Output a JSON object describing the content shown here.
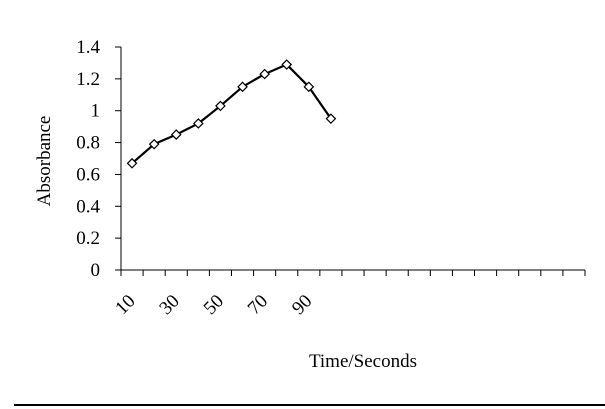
{
  "chart_data": {
    "type": "line",
    "title": "",
    "xlabel": "Time/Seconds",
    "ylabel": "Absorbance",
    "x": [
      10,
      20,
      30,
      40,
      50,
      60,
      70,
      80,
      90,
      100
    ],
    "series": [
      {
        "values": [
          0.67,
          0.79,
          0.85,
          0.92,
          1.03,
          1.15,
          1.23,
          1.29,
          1.15,
          0.95
        ],
        "marker": "diamond",
        "color": "#000000"
      }
    ],
    "y_ticks": [
      "0",
      "0.2",
      "0.4",
      "0.6",
      "0.8",
      "1",
      "1.2",
      "1.4"
    ],
    "x_tick_labels": [
      "10",
      "30",
      "50",
      "70",
      "90"
    ],
    "x_tick_label_values": [
      10,
      30,
      50,
      70,
      90
    ],
    "ylim": [
      0,
      1.4
    ],
    "xlim": [
      5,
      215
    ],
    "x_minor_tick_step": 10,
    "grid": false,
    "legend": "none"
  }
}
